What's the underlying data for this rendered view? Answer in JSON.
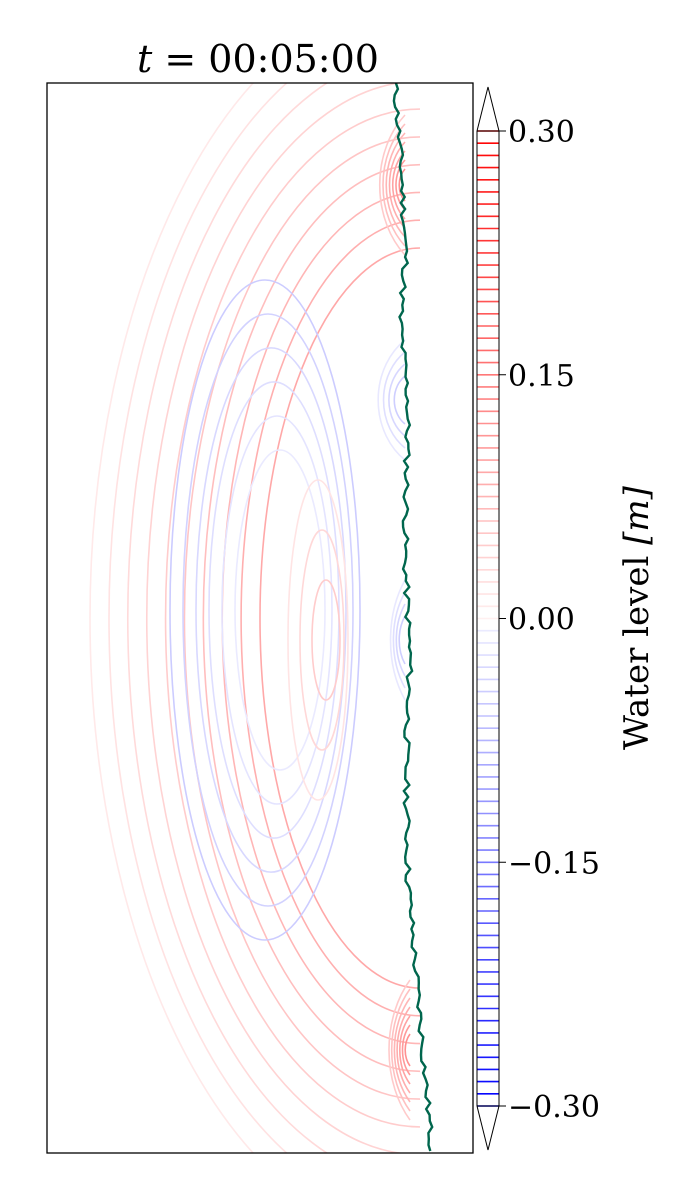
{
  "chart_data": {
    "type": "contour",
    "title": "t = 00:05:00",
    "title_var": "t",
    "title_value": "00:05:00",
    "colorbar": {
      "label": "Water level [m]",
      "label_text": "Water level ",
      "label_unit": "[m]",
      "range": [
        -0.3,
        0.3
      ],
      "extend": "both",
      "colormap": "bwr",
      "ticks": [
        0.3,
        0.15,
        0.0,
        -0.15,
        -0.3
      ],
      "tick_labels": [
        "0.30",
        "0.15",
        "0.00",
        "−0.15",
        "−0.30"
      ],
      "level_step": 0.0075
    },
    "contour_levels_shown": [
      -0.09,
      -0.075,
      -0.06,
      -0.045,
      -0.03,
      -0.015,
      0.015,
      0.03,
      0.045,
      0.06,
      0.075,
      0.09,
      0.105,
      0.12,
      0.135,
      0.15
    ],
    "shoreline_color": "#00664d",
    "colors": {
      "positive": "#ff0000",
      "negative": "#0000ff",
      "axes": "#000000"
    }
  }
}
